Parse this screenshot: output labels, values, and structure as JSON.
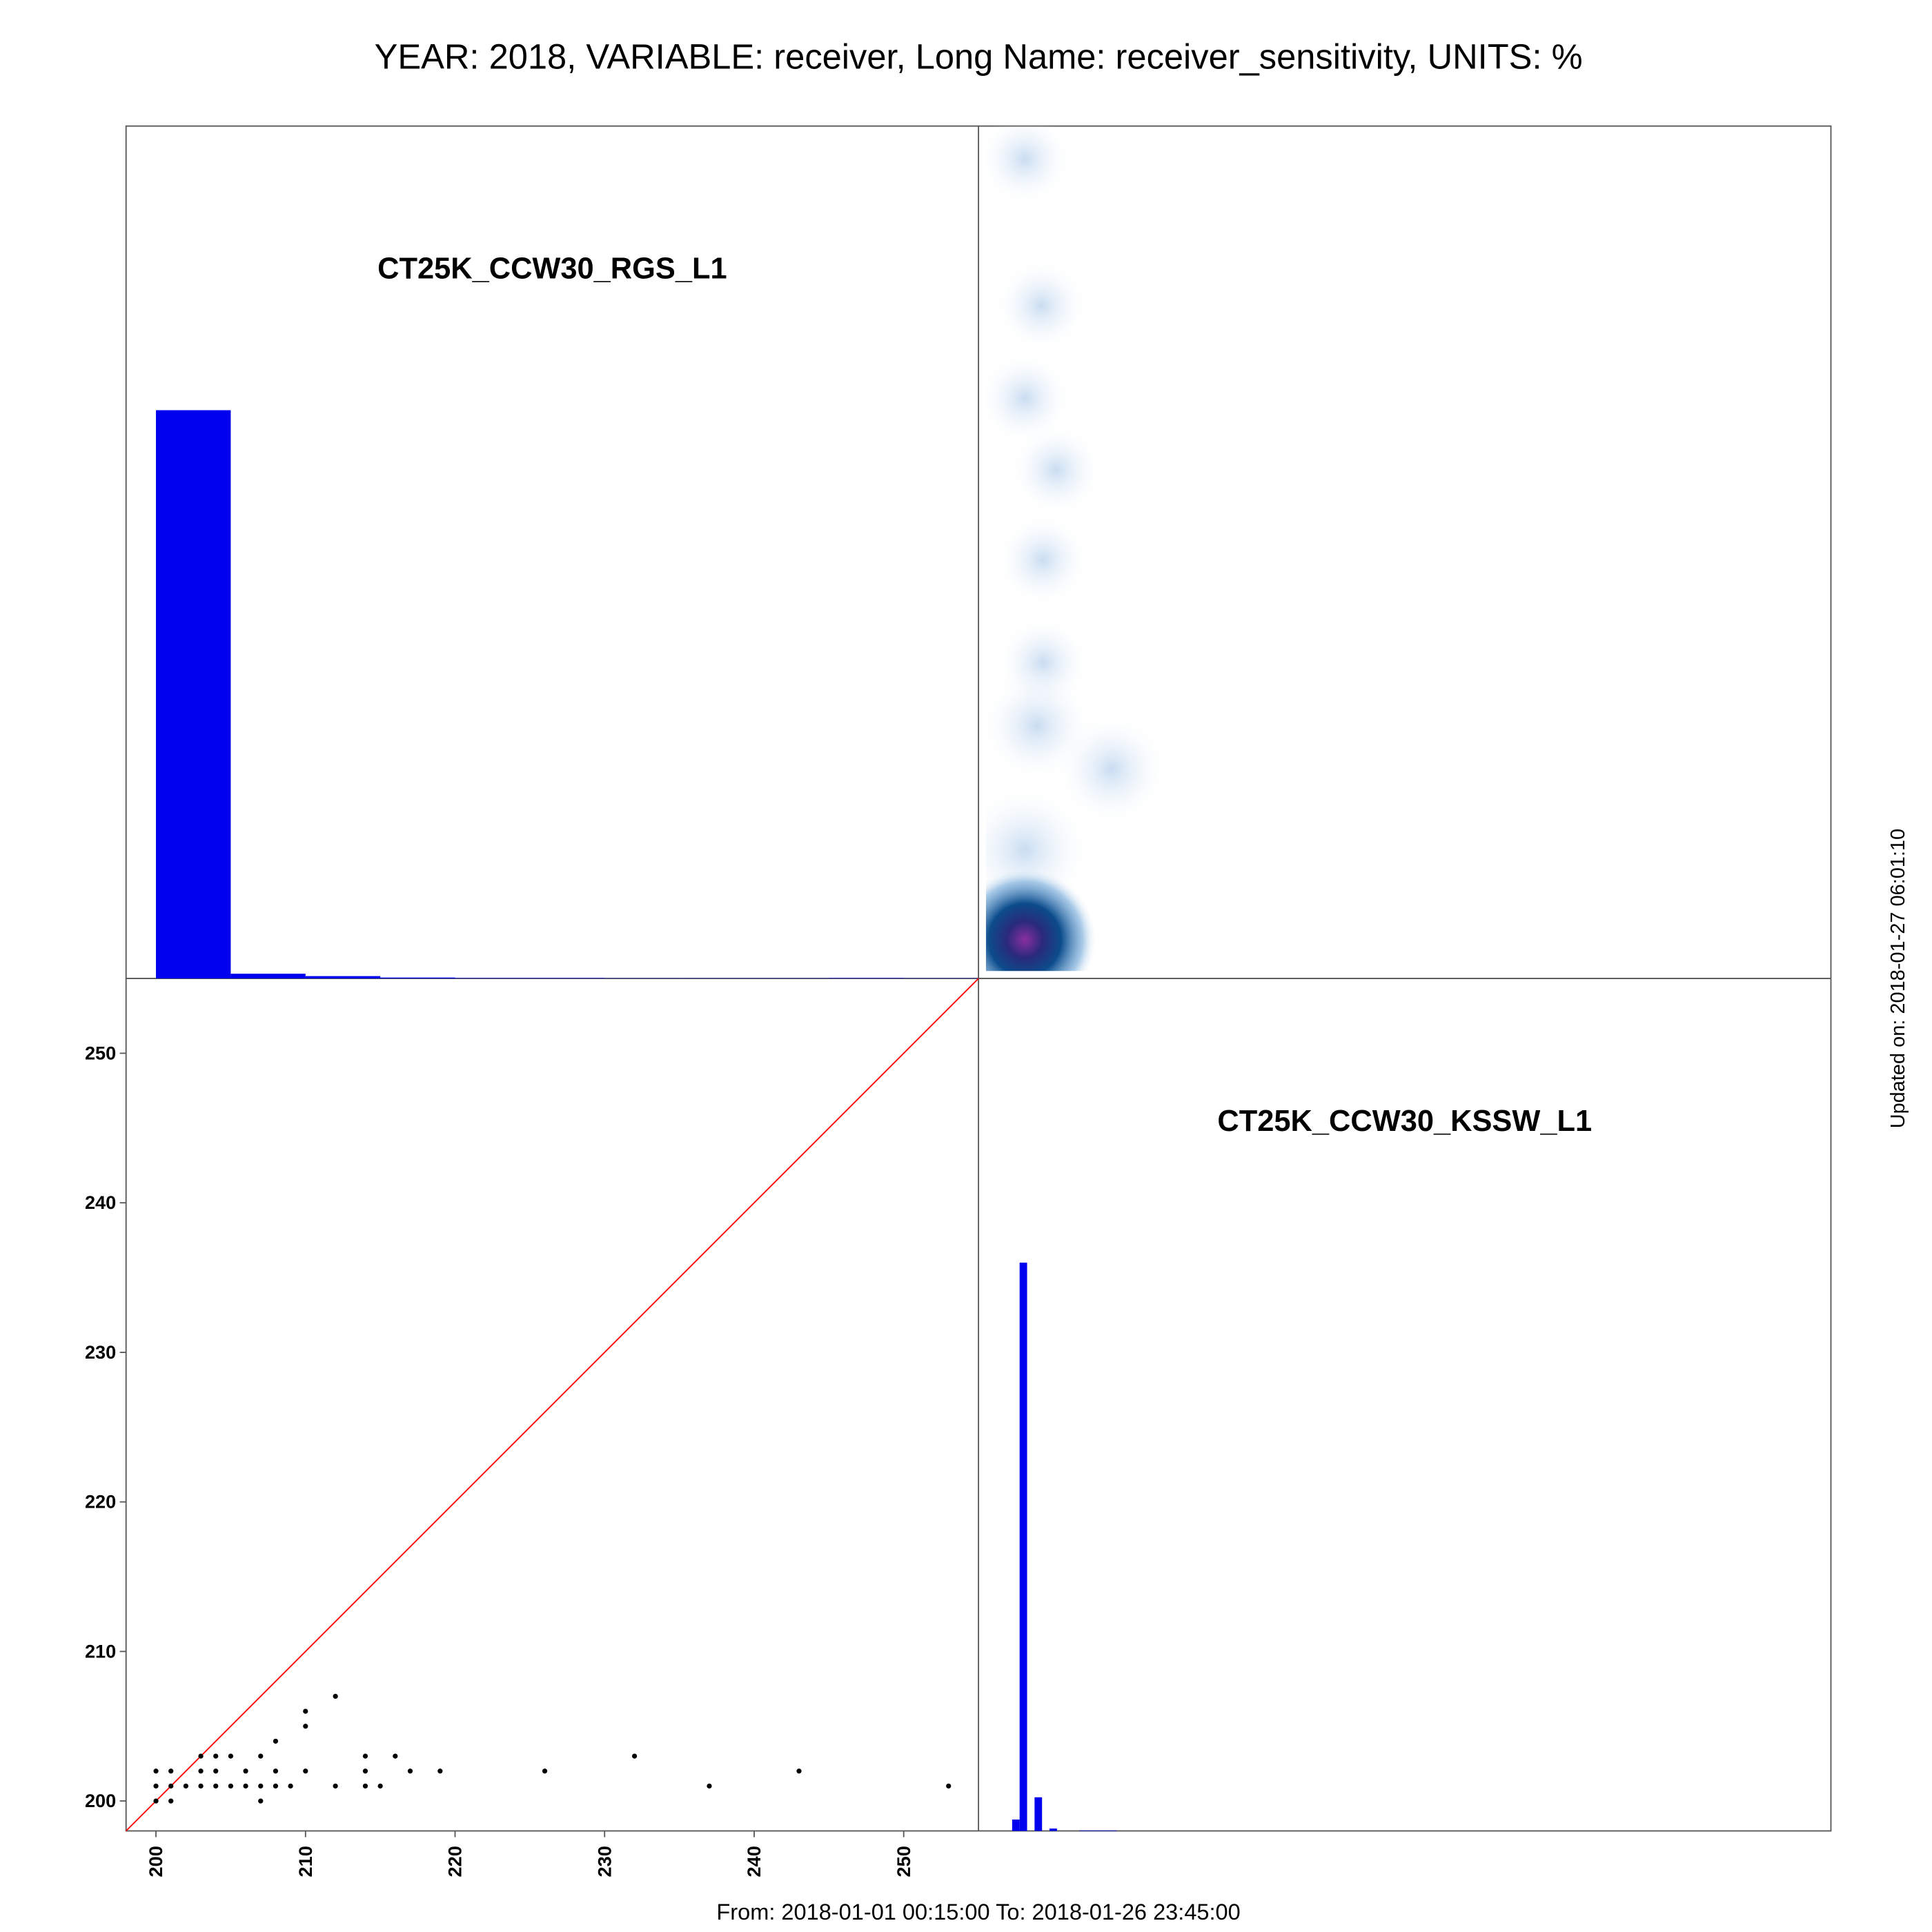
{
  "title": "YEAR: 2018, VARIABLE: receiver, Long Name: receiver_sensitivity, UNITS: %",
  "updated": "Updated on: 2018-01-27 06:01:10",
  "footer": "From: 2018-01-01 00:15:00 To: 2018-01-26 23:45:00",
  "chart_data": [
    {
      "type": "histogram",
      "label": "CT25K_CCW30_RGS_L1",
      "color": "#0000ee",
      "bins": [
        200,
        205,
        210,
        215,
        220,
        225,
        230,
        235,
        240,
        245,
        250,
        255
      ],
      "counts": [
        2400,
        20,
        10,
        4,
        2,
        2,
        1,
        1,
        1,
        2,
        1
      ],
      "xlim": [
        198,
        255
      ],
      "ylim": [
        0,
        3600
      ]
    },
    {
      "type": "density",
      "color": "#1f5fa8",
      "x": [
        201.1,
        202.2,
        201.1,
        203.2,
        202.3,
        202.3,
        201.9,
        206.9,
        201.1,
        201.1
      ],
      "y": [
        252.8,
        243.0,
        236.8,
        232.0,
        226.0,
        219.1,
        214.9,
        212.0,
        206.6,
        200.6
      ],
      "weight": [
        1,
        1,
        1,
        1,
        1,
        1,
        2,
        2,
        3,
        100
      ],
      "xlim": [
        198,
        255
      ],
      "ylim": [
        198,
        255
      ]
    },
    {
      "type": "scatter",
      "color": "#000000",
      "line_color": "#ff0000",
      "x": [
        200,
        200,
        200,
        201,
        201,
        201,
        202,
        203,
        203,
        203,
        204,
        204,
        204,
        205,
        205,
        206,
        206,
        207,
        207,
        207,
        208,
        208,
        208,
        209,
        210,
        210,
        210,
        212,
        212,
        214,
        214,
        214,
        215,
        216,
        217,
        219,
        226,
        232,
        237,
        243,
        253
      ],
      "y": [
        200,
        201,
        202,
        200,
        201,
        202,
        201,
        201,
        202,
        203,
        201,
        202,
        203,
        201,
        203,
        201,
        202,
        200,
        201,
        203,
        201,
        202,
        204,
        201,
        202,
        205,
        206,
        201,
        207,
        201,
        202,
        203,
        201,
        203,
        202,
        202,
        202,
        203,
        201,
        202,
        201
      ],
      "xlim": [
        198,
        255
      ],
      "ylim": [
        198,
        255
      ],
      "xticks": [
        200,
        210,
        220,
        230,
        240,
        250
      ],
      "yticks": [
        200,
        210,
        220,
        230,
        240,
        250
      ]
    },
    {
      "type": "histogram",
      "label": "CT25K_CCW30_KSSW_L1",
      "color": "#0000ee",
      "bins": [
        200.25,
        200.75,
        201.25,
        201.75,
        202.25,
        202.75,
        203.25,
        203.75,
        204.25,
        204.75,
        205.25,
        205.75,
        206.25,
        206.75,
        207.25
      ],
      "counts": [
        48,
        2400,
        0,
        142,
        0,
        10,
        0,
        0,
        0,
        2,
        2,
        2,
        2,
        2
      ],
      "xlim": [
        198,
        255
      ],
      "ylim": [
        0,
        3600
      ]
    }
  ]
}
